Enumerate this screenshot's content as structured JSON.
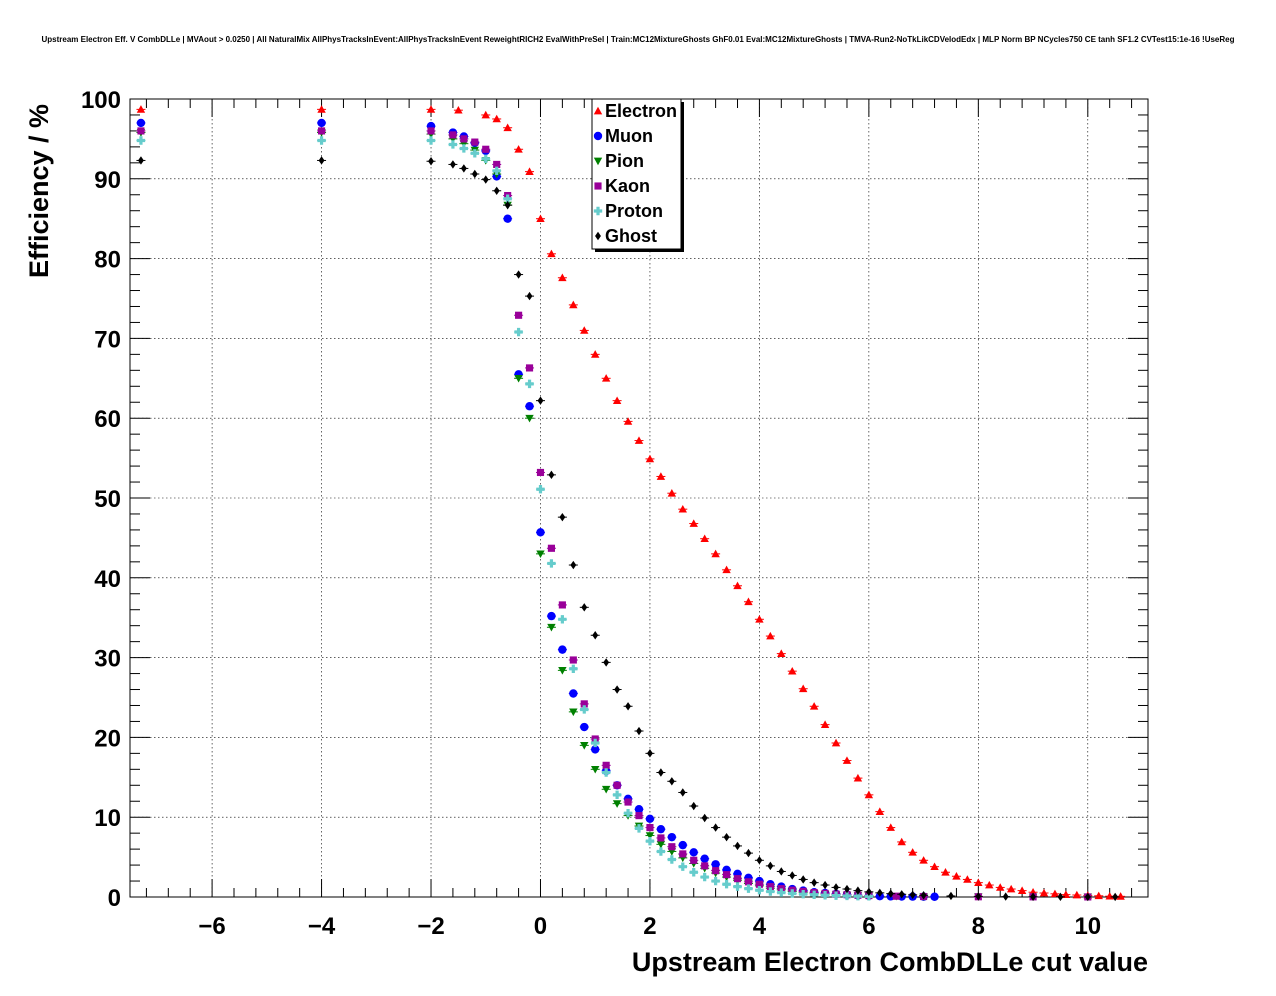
{
  "chart_data": {
    "type": "scatter",
    "title": "Upstream Electron Eff. V CombDLLe | MVAout > 0.0250 | All NaturalMix AllPhysTracksInEvent:AllPhysTracksInEvent ReweightRICH2 EvalWithPreSel | Train:MC12MixtureGhosts GhF0.01 Eval:MC12MixtureGhosts | TMVA-Run2-NoTkLikCDVelodEdx | MLP Norm BP NCycles750 CE tanh SF1.2 CVTest15:1e-16 !UseReg",
    "xlabel": "Upstream Electron CombDLLe cut value",
    "ylabel": "Efficiency / %",
    "xlim": [
      -7.5,
      11.1
    ],
    "ylim": [
      0,
      100
    ],
    "xticks": [
      -6,
      -4,
      -2,
      0,
      2,
      4,
      6,
      8,
      10
    ],
    "xtick_labels": [
      "−6",
      "−4",
      "−2",
      "0",
      "2",
      "4",
      "6",
      "8",
      "10"
    ],
    "yticks": [
      0,
      10,
      20,
      30,
      40,
      50,
      60,
      70,
      80,
      90,
      100
    ],
    "ytick_labels": [
      "0",
      "10",
      "20",
      "30",
      "40",
      "50",
      "60",
      "70",
      "80",
      "90",
      "100"
    ],
    "grid": true,
    "legend_position": "top-center",
    "series": [
      {
        "name": "Electron",
        "color": "#ff0000",
        "marker": "triangle-up",
        "points": [
          [
            -7.3,
            98.7
          ],
          [
            -4.0,
            98.7
          ],
          [
            -2.0,
            98.7
          ],
          [
            -1.5,
            98.6
          ],
          [
            -1.0,
            98.0
          ],
          [
            -0.8,
            97.5
          ],
          [
            -0.6,
            96.4
          ],
          [
            -0.4,
            93.7
          ],
          [
            -0.2,
            90.9
          ],
          [
            0.0,
            85.0
          ],
          [
            0.2,
            80.6
          ],
          [
            0.4,
            77.6
          ],
          [
            0.6,
            74.2
          ],
          [
            0.8,
            71.0
          ],
          [
            1.0,
            68.0
          ],
          [
            1.2,
            65.0
          ],
          [
            1.4,
            62.2
          ],
          [
            1.6,
            59.6
          ],
          [
            1.8,
            57.2
          ],
          [
            2.0,
            54.9
          ],
          [
            2.2,
            52.7
          ],
          [
            2.4,
            50.6
          ],
          [
            2.6,
            48.6
          ],
          [
            2.8,
            46.8
          ],
          [
            3.0,
            44.9
          ],
          [
            3.2,
            43.0
          ],
          [
            3.4,
            41.0
          ],
          [
            3.6,
            39.0
          ],
          [
            3.8,
            37.0
          ],
          [
            4.0,
            34.8
          ],
          [
            4.2,
            32.7
          ],
          [
            4.4,
            30.5
          ],
          [
            4.6,
            28.3
          ],
          [
            4.8,
            26.1
          ],
          [
            5.0,
            23.9
          ],
          [
            5.2,
            21.6
          ],
          [
            5.4,
            19.3
          ],
          [
            5.6,
            17.1
          ],
          [
            5.8,
            14.9
          ],
          [
            6.0,
            12.8
          ],
          [
            6.2,
            10.7
          ],
          [
            6.4,
            8.7
          ],
          [
            6.6,
            6.9
          ],
          [
            6.8,
            5.6
          ],
          [
            7.0,
            4.6
          ],
          [
            7.2,
            3.8
          ],
          [
            7.4,
            3.1
          ],
          [
            7.6,
            2.6
          ],
          [
            7.8,
            2.2
          ],
          [
            8.0,
            1.8
          ],
          [
            8.2,
            1.5
          ],
          [
            8.4,
            1.2
          ],
          [
            8.6,
            1.0
          ],
          [
            8.8,
            0.8
          ],
          [
            9.0,
            0.6
          ],
          [
            9.2,
            0.5
          ],
          [
            9.4,
            0.4
          ],
          [
            9.6,
            0.3
          ],
          [
            9.8,
            0.25
          ],
          [
            10.0,
            0.2
          ],
          [
            10.2,
            0.15
          ],
          [
            10.4,
            0.1
          ],
          [
            10.6,
            0.08
          ]
        ]
      },
      {
        "name": "Muon",
        "color": "#0000ff",
        "marker": "circle",
        "points": [
          [
            -7.3,
            97.0
          ],
          [
            -4.0,
            97.0
          ],
          [
            -2.0,
            96.6
          ],
          [
            -1.6,
            95.8
          ],
          [
            -1.4,
            95.3
          ],
          [
            -1.2,
            94.5
          ],
          [
            -1.0,
            93.5
          ],
          [
            -0.8,
            90.3
          ],
          [
            -0.6,
            85.0
          ],
          [
            -0.4,
            65.5
          ],
          [
            -0.2,
            61.5
          ],
          [
            0.0,
            45.7
          ],
          [
            0.2,
            35.2
          ],
          [
            0.4,
            31.0
          ],
          [
            0.6,
            25.5
          ],
          [
            0.8,
            21.3
          ],
          [
            1.0,
            18.5
          ],
          [
            1.2,
            15.8
          ],
          [
            1.4,
            14.0
          ],
          [
            1.6,
            12.3
          ],
          [
            1.8,
            11.0
          ],
          [
            2.0,
            9.8
          ],
          [
            2.2,
            8.5
          ],
          [
            2.4,
            7.5
          ],
          [
            2.6,
            6.5
          ],
          [
            2.8,
            5.6
          ],
          [
            3.0,
            4.8
          ],
          [
            3.2,
            4.1
          ],
          [
            3.4,
            3.4
          ],
          [
            3.6,
            2.9
          ],
          [
            3.8,
            2.4
          ],
          [
            4.0,
            2.0
          ],
          [
            4.2,
            1.6
          ],
          [
            4.4,
            1.3
          ],
          [
            4.6,
            1.0
          ],
          [
            4.8,
            0.8
          ],
          [
            5.0,
            0.6
          ],
          [
            5.2,
            0.5
          ],
          [
            5.4,
            0.4
          ],
          [
            5.6,
            0.3
          ],
          [
            5.8,
            0.2
          ],
          [
            6.0,
            0.15
          ],
          [
            6.2,
            0.1
          ],
          [
            6.4,
            0.08
          ],
          [
            6.6,
            0.06
          ],
          [
            6.8,
            0.05
          ],
          [
            7.0,
            0.04
          ],
          [
            7.2,
            0.03
          ]
        ]
      },
      {
        "name": "Pion",
        "color": "#008000",
        "marker": "triangle-down",
        "points": [
          [
            -7.3,
            95.8
          ],
          [
            -4.0,
            95.8
          ],
          [
            -2.0,
            95.6
          ],
          [
            -1.6,
            95.0
          ],
          [
            -1.4,
            94.4
          ],
          [
            -1.2,
            93.6
          ],
          [
            -1.0,
            92.3
          ],
          [
            -0.8,
            90.6
          ],
          [
            -0.6,
            86.7
          ],
          [
            -0.4,
            65.0
          ],
          [
            -0.2,
            60.0
          ],
          [
            0.0,
            43.0
          ],
          [
            0.2,
            33.8
          ],
          [
            0.4,
            28.4
          ],
          [
            0.6,
            23.2
          ],
          [
            0.8,
            19.0
          ],
          [
            1.0,
            16.0
          ],
          [
            1.2,
            13.5
          ],
          [
            1.4,
            11.7
          ],
          [
            1.6,
            10.2
          ],
          [
            1.8,
            8.9
          ],
          [
            2.0,
            7.7
          ],
          [
            2.2,
            6.6
          ],
          [
            2.4,
            5.7
          ],
          [
            2.6,
            4.9
          ],
          [
            2.8,
            4.2
          ],
          [
            3.0,
            3.6
          ],
          [
            3.2,
            3.0
          ],
          [
            3.4,
            2.5
          ],
          [
            3.6,
            2.1
          ],
          [
            3.8,
            1.7
          ],
          [
            4.0,
            1.4
          ],
          [
            4.2,
            1.1
          ],
          [
            4.4,
            0.9
          ],
          [
            4.6,
            0.7
          ],
          [
            4.8,
            0.55
          ],
          [
            5.0,
            0.45
          ],
          [
            5.2,
            0.35
          ],
          [
            5.4,
            0.28
          ],
          [
            5.6,
            0.22
          ],
          [
            5.8,
            0.17
          ],
          [
            6.0,
            0.13
          ],
          [
            6.5,
            0.08
          ],
          [
            7.0,
            0.05
          ],
          [
            8.0,
            0.03
          ],
          [
            9.0,
            0.02
          ],
          [
            10.0,
            0.01
          ]
        ]
      },
      {
        "name": "Kaon",
        "color": "#990099",
        "marker": "square",
        "points": [
          [
            -7.3,
            96.0
          ],
          [
            -4.0,
            96.0
          ],
          [
            -2.0,
            96.0
          ],
          [
            -1.6,
            95.5
          ],
          [
            -1.4,
            95.0
          ],
          [
            -1.2,
            94.6
          ],
          [
            -1.0,
            93.7
          ],
          [
            -0.8,
            91.8
          ],
          [
            -0.6,
            87.9
          ],
          [
            -0.4,
            72.9
          ],
          [
            -0.2,
            66.3
          ],
          [
            0.0,
            53.2
          ],
          [
            0.2,
            43.7
          ],
          [
            0.4,
            36.6
          ],
          [
            0.6,
            29.7
          ],
          [
            0.8,
            24.2
          ],
          [
            1.0,
            19.8
          ],
          [
            1.2,
            16.5
          ],
          [
            1.4,
            14.0
          ],
          [
            1.6,
            11.9
          ],
          [
            1.8,
            10.2
          ],
          [
            2.0,
            8.7
          ],
          [
            2.2,
            7.4
          ],
          [
            2.4,
            6.3
          ],
          [
            2.6,
            5.4
          ],
          [
            2.8,
            4.6
          ],
          [
            3.0,
            3.9
          ],
          [
            3.2,
            3.3
          ],
          [
            3.4,
            2.8
          ],
          [
            3.6,
            2.3
          ],
          [
            3.8,
            1.9
          ],
          [
            4.0,
            1.6
          ],
          [
            4.2,
            1.3
          ],
          [
            4.4,
            1.05
          ],
          [
            4.6,
            0.85
          ],
          [
            4.8,
            0.7
          ],
          [
            5.0,
            0.55
          ],
          [
            5.2,
            0.45
          ],
          [
            5.4,
            0.36
          ],
          [
            5.6,
            0.29
          ],
          [
            5.8,
            0.23
          ],
          [
            6.0,
            0.18
          ],
          [
            6.5,
            0.1
          ],
          [
            7.0,
            0.06
          ],
          [
            8.0,
            0.03
          ],
          [
            9.0,
            0.02
          ],
          [
            10.0,
            0.01
          ]
        ]
      },
      {
        "name": "Proton",
        "color": "#66cccc",
        "marker": "cross",
        "points": [
          [
            -7.3,
            94.8
          ],
          [
            -4.0,
            94.8
          ],
          [
            -2.0,
            94.8
          ],
          [
            -1.6,
            94.3
          ],
          [
            -1.4,
            93.8
          ],
          [
            -1.2,
            93.2
          ],
          [
            -1.0,
            92.5
          ],
          [
            -0.8,
            91.0
          ],
          [
            -0.6,
            87.5
          ],
          [
            -0.4,
            70.8
          ],
          [
            -0.2,
            64.3
          ],
          [
            0.0,
            51.1
          ],
          [
            0.2,
            41.8
          ],
          [
            0.4,
            34.8
          ],
          [
            0.6,
            28.6
          ],
          [
            0.8,
            23.5
          ],
          [
            1.0,
            19.3
          ],
          [
            1.2,
            15.6
          ],
          [
            1.4,
            12.8
          ],
          [
            1.6,
            10.5
          ],
          [
            1.8,
            8.6
          ],
          [
            2.0,
            7.0
          ],
          [
            2.2,
            5.7
          ],
          [
            2.4,
            4.7
          ],
          [
            2.6,
            3.8
          ],
          [
            2.8,
            3.1
          ],
          [
            3.0,
            2.5
          ],
          [
            3.2,
            2.0
          ],
          [
            3.4,
            1.6
          ],
          [
            3.6,
            1.3
          ],
          [
            3.8,
            1.05
          ],
          [
            4.0,
            0.85
          ],
          [
            4.2,
            0.68
          ],
          [
            4.4,
            0.55
          ],
          [
            4.6,
            0.44
          ],
          [
            4.8,
            0.35
          ],
          [
            5.0,
            0.28
          ],
          [
            5.2,
            0.22
          ],
          [
            5.4,
            0.17
          ],
          [
            5.6,
            0.13
          ],
          [
            5.8,
            0.1
          ],
          [
            6.0,
            0.08
          ]
        ]
      },
      {
        "name": "Ghost",
        "color": "#000000",
        "marker": "diamond",
        "points": [
          [
            -7.3,
            92.3
          ],
          [
            -4.0,
            92.3
          ],
          [
            -2.0,
            92.2
          ],
          [
            -1.6,
            91.8
          ],
          [
            -1.4,
            91.3
          ],
          [
            -1.2,
            90.6
          ],
          [
            -1.0,
            89.9
          ],
          [
            -0.8,
            88.5
          ],
          [
            -0.6,
            86.7
          ],
          [
            -0.4,
            78.0
          ],
          [
            -0.2,
            75.3
          ],
          [
            0.0,
            62.2
          ],
          [
            0.2,
            52.9
          ],
          [
            0.4,
            47.6
          ],
          [
            0.6,
            41.6
          ],
          [
            0.8,
            36.3
          ],
          [
            1.0,
            32.8
          ],
          [
            1.2,
            29.4
          ],
          [
            1.4,
            26.0
          ],
          [
            1.6,
            23.9
          ],
          [
            1.8,
            20.8
          ],
          [
            2.0,
            18.0
          ],
          [
            2.2,
            15.6
          ],
          [
            2.4,
            14.5
          ],
          [
            2.6,
            13.1
          ],
          [
            2.8,
            11.4
          ],
          [
            3.0,
            9.9
          ],
          [
            3.2,
            8.7
          ],
          [
            3.4,
            7.5
          ],
          [
            3.6,
            6.4
          ],
          [
            3.8,
            5.5
          ],
          [
            4.0,
            4.6
          ],
          [
            4.2,
            3.9
          ],
          [
            4.4,
            3.2
          ],
          [
            4.6,
            2.7
          ],
          [
            4.8,
            2.2
          ],
          [
            5.0,
            1.8
          ],
          [
            5.2,
            1.5
          ],
          [
            5.4,
            1.2
          ],
          [
            5.6,
            1.0
          ],
          [
            5.8,
            0.8
          ],
          [
            6.0,
            0.65
          ],
          [
            6.2,
            0.52
          ],
          [
            6.4,
            0.42
          ],
          [
            6.6,
            0.34
          ],
          [
            6.8,
            0.27
          ],
          [
            7.0,
            0.22
          ],
          [
            7.5,
            0.13
          ],
          [
            8.0,
            0.08
          ],
          [
            8.5,
            0.05
          ],
          [
            9.0,
            0.03
          ],
          [
            9.5,
            0.02
          ],
          [
            10.0,
            0.01
          ],
          [
            10.5,
            0.01
          ]
        ]
      }
    ]
  }
}
